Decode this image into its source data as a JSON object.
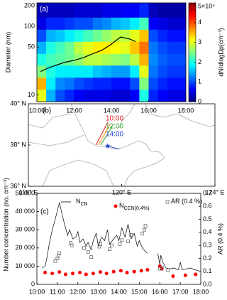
{
  "chart_data": [
    {
      "type": "heatmap",
      "panel_label": "(a)",
      "ylabel": "Diameter (nm)",
      "colorbar_label": "dN/dlogDp(cm⁻³)",
      "colormap": "jet",
      "x_edges": [
        10,
        10.5,
        11,
        11.5,
        12,
        12.5,
        13,
        13.5,
        14,
        14.5,
        15,
        15.5,
        16,
        16.5,
        17,
        17.5,
        18
      ],
      "y_edges": [
        8,
        12,
        18,
        27,
        40,
        60,
        90,
        135,
        220
      ],
      "z": [
        [
          3,
          3.5,
          2.5,
          2,
          1.5,
          1,
          0.5,
          0.3
        ],
        [
          1.5,
          1.8,
          2,
          2.2,
          2,
          1.5,
          0.8,
          0.3
        ],
        [
          1,
          1.3,
          1.8,
          2.3,
          2.2,
          1.6,
          0.8,
          0.3
        ],
        [
          0.8,
          1.2,
          1.8,
          2.4,
          2.4,
          1.8,
          0.9,
          0.3
        ],
        [
          0.6,
          1,
          1.8,
          2.6,
          2.8,
          2,
          1,
          0.4
        ],
        [
          0.5,
          0.9,
          1.8,
          2.8,
          3,
          2.2,
          1,
          0.4
        ],
        [
          0.5,
          0.8,
          1.6,
          2.8,
          3.2,
          2.4,
          1.2,
          0.4
        ],
        [
          0.5,
          0.8,
          1.5,
          2.7,
          3.2,
          2.6,
          1.3,
          0.5
        ],
        [
          0.4,
          0.7,
          1.4,
          2.6,
          3.1,
          2.8,
          1.5,
          0.5
        ],
        [
          0.4,
          0.7,
          1.4,
          2.5,
          3,
          2.8,
          1.6,
          0.6
        ],
        [
          0.6,
          1,
          1.8,
          2.8,
          3.4,
          3,
          1.8,
          0.6
        ],
        [
          2,
          2.5,
          3,
          3.5,
          3.8,
          3.4,
          2.2,
          0.8
        ],
        [
          0.8,
          1,
          1.2,
          1.3,
          1.2,
          1,
          0.6,
          0.3
        ],
        [
          0.6,
          0.8,
          1,
          1.1,
          1,
          0.8,
          0.5,
          0.2
        ],
        [
          0.5,
          0.7,
          0.9,
          1,
          0.9,
          0.7,
          0.4,
          0.2
        ],
        [
          0.5,
          0.7,
          0.9,
          1,
          0.9,
          0.7,
          0.4,
          0.2
        ]
      ],
      "xlim": [
        10,
        18
      ],
      "xticks": [
        {
          "value": 10,
          "label": "10:00"
        },
        {
          "value": 12,
          "label": "12:00"
        },
        {
          "value": 14,
          "label": "14:00"
        },
        {
          "value": 16,
          "label": "16:00"
        },
        {
          "value": 18,
          "label": "18:00"
        }
      ],
      "ylim": [
        8,
        220
      ],
      "ylog": true,
      "yticks": [
        10,
        50,
        100,
        200
      ],
      "clim": [
        0,
        5
      ],
      "cticks": [
        0,
        1,
        2,
        3,
        4,
        {
          "value": 5,
          "label": "5×10⁴"
        }
      ],
      "series": [
        {
          "color": "#000000",
          "x": [
            10.2,
            10.5,
            11,
            11.5,
            12,
            12.5,
            13,
            13.5,
            14,
            14.5,
            15,
            15.3
          ],
          "values": [
            22,
            24,
            27,
            30,
            32,
            35,
            40,
            45,
            55,
            70,
            65,
            60
          ]
        }
      ]
    },
    {
      "type": "map",
      "panel_label": "(b)",
      "xlim": [
        116,
        124
      ],
      "xticks": [
        {
          "value": 116,
          "label": "116° E"
        },
        {
          "value": 120,
          "label": "120° E"
        },
        {
          "value": 124,
          "label": "124° E"
        }
      ],
      "ylim": [
        36,
        40
      ],
      "yticks": [
        {
          "value": 36,
          "label": "36° N"
        },
        {
          "value": 38,
          "label": "38° N"
        },
        {
          "value": 40,
          "label": "40° N"
        }
      ],
      "series": [
        {
          "name": "10:00",
          "color": "#e41a1c",
          "lon": [
            118.9,
            119.4
          ],
          "lat": [
            38.0,
            39.1
          ]
        },
        {
          "color": "#ff8c00",
          "lon": [
            119.0,
            119.5
          ],
          "lat": [
            38.0,
            39.0
          ]
        },
        {
          "name": "12:00",
          "color": "#2ca02c",
          "lon": [
            119.1,
            119.6
          ],
          "lat": [
            38.0,
            38.9
          ]
        },
        {
          "name": "14:00",
          "color": "#1f3fd0",
          "marker": "star",
          "lon": [
            119.4,
            119.9
          ],
          "lat": [
            37.95,
            37.8
          ]
        }
      ]
    },
    {
      "type": "line",
      "panel_label": "(c)",
      "ylabel": "Number concentration (no. cm⁻³)",
      "y2label": "AR (0.4 %)",
      "xlim": [
        10,
        18
      ],
      "xticks": [
        {
          "value": 10,
          "label": "10:00"
        },
        {
          "value": 11,
          "label": "11:00"
        },
        {
          "value": 12,
          "label": "12:00"
        },
        {
          "value": 13,
          "label": "13:00"
        },
        {
          "value": 14,
          "label": "14:00"
        },
        {
          "value": 15,
          "label": "15:00"
        },
        {
          "value": 16,
          "label": "16:00"
        },
        {
          "value": 17,
          "label": "17:00"
        },
        {
          "value": 18,
          "label": "18:00"
        }
      ],
      "ylim": [
        0,
        50000
      ],
      "yticks": [
        0,
        {
          "value": 10000,
          "label": "10 000"
        },
        {
          "value": 20000,
          "label": "20 000"
        },
        {
          "value": 30000,
          "label": "30 000"
        },
        {
          "value": 40000,
          "label": "40 000"
        },
        {
          "value": 50000,
          "label": "50 000"
        }
      ],
      "y2lim": [
        0,
        0.7
      ],
      "y2ticks": [
        {
          "value": 0,
          "label": "0.0"
        },
        0.1,
        0.2,
        0.3,
        0.4,
        0.5,
        0.6,
        0.7
      ],
      "series": [
        {
          "name": "N",
          "name_sub": "CN",
          "color": "#000000",
          "style": "line",
          "x": [
            10.25,
            10.4,
            10.5,
            10.6,
            10.75,
            10.9,
            11.1,
            11.2,
            11.35,
            11.5,
            11.6,
            11.75,
            11.9,
            12.0,
            12.1,
            12.25,
            12.4,
            12.5,
            12.65,
            12.75,
            12.9,
            13.0,
            13.15,
            13.3,
            13.45,
            13.55,
            13.75,
            13.9,
            14.0,
            14.15,
            14.3,
            14.45,
            14.6,
            14.75,
            14.9,
            15.0,
            15.15,
            15.3,
            15.4,
            15.5,
            15.9,
            16.0,
            16.05,
            16.15,
            16.3,
            16.5,
            16.7,
            16.9,
            17.0,
            17.1,
            17.3,
            17.5,
            17.7,
            17.9
          ],
          "values": [
            9000,
            10000,
            15000,
            22000,
            30000,
            36000,
            45000,
            40000,
            33000,
            27000,
            30000,
            25000,
            26000,
            29000,
            23000,
            25000,
            21000,
            23000,
            19000,
            24000,
            28000,
            21000,
            26000,
            24000,
            30000,
            22000,
            25000,
            27000,
            24000,
            31000,
            26000,
            33000,
            25000,
            28000,
            21000,
            24000,
            20000,
            18000,
            17000,
            null,
            17000,
            11000,
            16000,
            12000,
            9000,
            8500,
            9000,
            8000,
            12000,
            8000,
            8500,
            9000,
            8000,
            7500
          ]
        },
        {
          "name": "N",
          "name_sub": "CCN(0.4%)",
          "color": "#ff0000",
          "style": "dot",
          "x": [
            10.4,
            10.75,
            11.1,
            11.4,
            11.75,
            12.1,
            12.4,
            12.75,
            13.1,
            13.4,
            13.75,
            14.1,
            14.4,
            14.75,
            15.1,
            15.4,
            16.0,
            16.1,
            16.65,
            17.25,
            17.75
          ],
          "values": [
            6500,
            6000,
            6800,
            5500,
            6000,
            6500,
            5500,
            6000,
            6800,
            6000,
            7000,
            7500,
            6500,
            7000,
            7500,
            8000,
            10000,
            8500,
            4500,
            5000,
            5500
          ]
        },
        {
          "name": "AR (0.4 %)",
          "color": "#555555",
          "style": "square",
          "axis": "y2",
          "x": [
            10.9,
            11.0,
            11.05,
            11.1,
            11.65,
            11.7,
            12.3,
            12.5,
            12.65,
            13.05,
            13.1,
            13.55,
            13.65,
            14.05,
            14.15,
            14.45,
            14.6,
            15.15,
            15.25,
            15.3,
            16.0,
            16.1,
            16.4
          ],
          "values": [
            0.18,
            0.2,
            0.22,
            0.24,
            0.32,
            0.3,
            0.28,
            0.25,
            0.21,
            0.29,
            0.31,
            0.27,
            0.3,
            0.31,
            0.34,
            0.33,
            0.38,
            0.39,
            0.42,
            0.45,
            0.12,
            0.13,
            0.11
          ]
        }
      ]
    }
  ]
}
